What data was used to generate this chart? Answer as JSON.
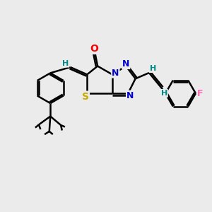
{
  "background_color": "#ebebeb",
  "bond_color": "#000000",
  "bond_width": 1.8,
  "atom_colors": {
    "O": "#ff0000",
    "N": "#0000cd",
    "S": "#ccaa00",
    "F": "#ff69b4",
    "H": "#008b8b",
    "C": "#000000"
  },
  "font_size_atom": 8,
  "scale": 10
}
